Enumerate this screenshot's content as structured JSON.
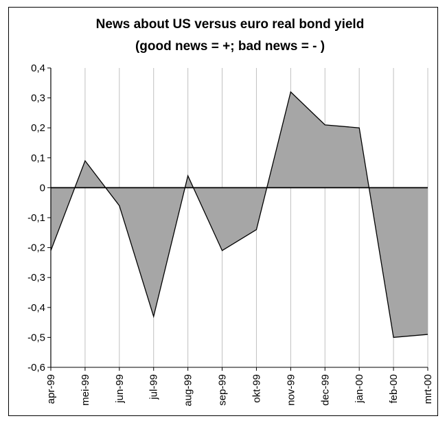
{
  "chart_data": {
    "type": "area",
    "title": "News about US versus euro real bond yield",
    "subtitle": "(good news = +; bad news = - )",
    "xlabel": "",
    "ylabel": "",
    "categories": [
      "apr-99",
      "mei-99",
      "jun-99",
      "jul-99",
      "aug-99",
      "sep-99",
      "okt-99",
      "nov-99",
      "dec-99",
      "jan-00",
      "feb-00",
      "mrt-00"
    ],
    "series": [
      {
        "values": [
          -0.21,
          0.09,
          -0.06,
          -0.43,
          0.04,
          -0.21,
          -0.14,
          0.32,
          0.21,
          0.2,
          -0.5,
          -0.49
        ]
      }
    ],
    "ylim": [
      -0.6,
      0.4
    ],
    "yticks": [
      "0,4",
      "0,3",
      "0,2",
      "0,1",
      "0",
      "-0,1",
      "-0,2",
      "-0,3",
      "-0,4",
      "-0,5",
      "-0,6"
    ],
    "grid": "vertical",
    "legend": "none",
    "colors": {
      "fill": "#a6a6a6",
      "line": "#000000",
      "grid": "#c0c0c0"
    }
  }
}
